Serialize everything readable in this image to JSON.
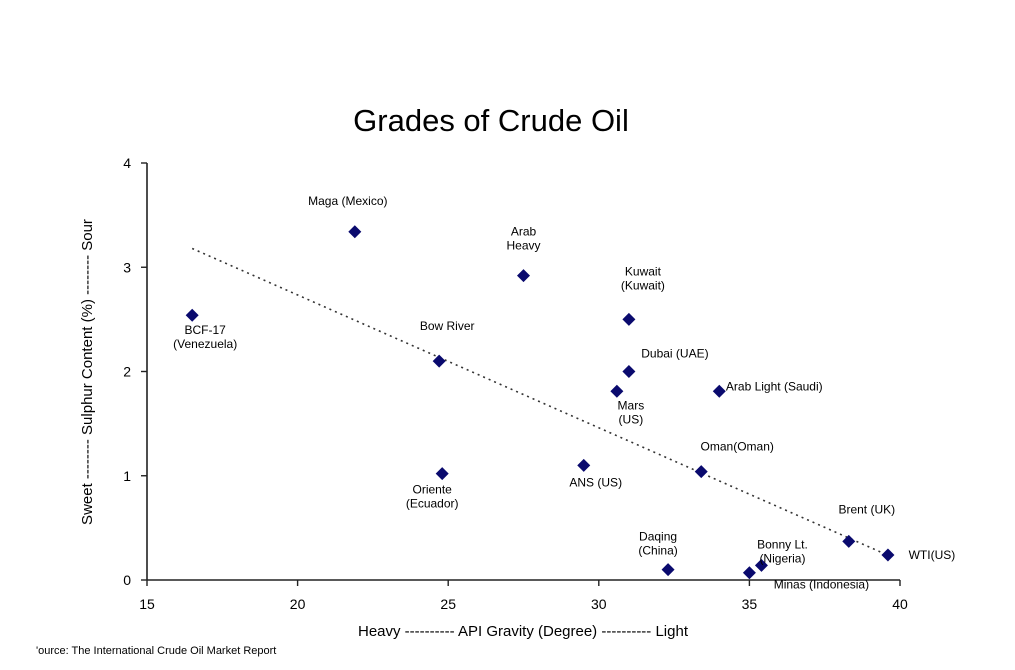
{
  "chart_data": {
    "type": "scatter",
    "title": "Grades of Crude Oil",
    "xlabel": "Heavy ---------- API Gravity (Degree) ---------- Light",
    "ylabel": "Sweet -------- Sulphur Content (%) -------- Sour",
    "xlim": [
      15,
      40
    ],
    "ylim": [
      0,
      4
    ],
    "x_ticks": [
      "15",
      "20",
      "25",
      "30",
      "35",
      "40"
    ],
    "y_ticks": [
      "0",
      "1",
      "2",
      "3",
      "4"
    ],
    "grid": false,
    "marker_color": "#0a0a6e",
    "trendline": {
      "style": "dotted",
      "points": [
        [
          16.5,
          3.18
        ],
        [
          39.5,
          0.25
        ]
      ]
    },
    "points": [
      {
        "label": [
          "Maga (Mexico)"
        ],
        "x": 21.9,
        "y": 3.34
      },
      {
        "label": [
          "Arab",
          "Heavy"
        ],
        "x": 27.5,
        "y": 2.92
      },
      {
        "label": [
          "Kuwait",
          "(Kuwait)"
        ],
        "x": 31.0,
        "y": 2.5
      },
      {
        "label": [
          "BCF-17",
          "(Venezuela)"
        ],
        "x": 16.5,
        "y": 2.54
      },
      {
        "label": [
          "Bow River"
        ],
        "x": 24.7,
        "y": 2.1
      },
      {
        "label": [
          "Dubai (UAE)"
        ],
        "x": 31.0,
        "y": 2.0
      },
      {
        "label": [
          "Mars",
          "(US)"
        ],
        "x": 30.6,
        "y": 1.81
      },
      {
        "label": [
          "Arab Light (Saudi)"
        ],
        "x": 34.0,
        "y": 1.81
      },
      {
        "label": [
          "Oman(Oman)"
        ],
        "x": 33.4,
        "y": 1.04
      },
      {
        "label": [
          "ANS (US)"
        ],
        "x": 29.5,
        "y": 1.1
      },
      {
        "label": [
          "Oriente",
          "(Ecuador)"
        ],
        "x": 24.8,
        "y": 1.02
      },
      {
        "label": [
          "Brent (UK)"
        ],
        "x": 38.3,
        "y": 0.37
      },
      {
        "label": [
          "WTI(US)"
        ],
        "x": 39.6,
        "y": 0.24
      },
      {
        "label": [
          "Daqing",
          "(China)"
        ],
        "x": 32.3,
        "y": 0.1
      },
      {
        "label": [
          "Bonny Lt.",
          "(Nigeria)"
        ],
        "x": 35.4,
        "y": 0.14
      },
      {
        "label": [
          "Minas (Indonesia)"
        ],
        "x": 35.0,
        "y": 0.07
      }
    ]
  },
  "source": "'ource: The International Crude Oil Market Report"
}
